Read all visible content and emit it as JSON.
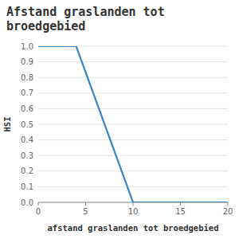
{
  "chart_data": {
    "type": "line",
    "title": "Afstand graslanden tot\nbroedgebied",
    "xlabel": "afstand graslanden tot broedgebied",
    "ylabel": "HSI",
    "x": [
      0,
      4,
      10,
      20
    ],
    "values": [
      1.0,
      1.0,
      0.0,
      0.0
    ],
    "color": "#3a86c8",
    "xlim": [
      0,
      20
    ],
    "ylim": [
      0.0,
      1.0
    ],
    "xticks": [
      0,
      5,
      10,
      15,
      20
    ],
    "yticks": [
      {
        "value": 0.0,
        "label": "0.0"
      },
      0.1,
      0.2,
      0.3,
      0.4,
      0.5,
      0.6,
      0.7,
      0.8,
      0.9,
      {
        "value": 1.0,
        "label": "1.0"
      }
    ],
    "grid": true
  }
}
